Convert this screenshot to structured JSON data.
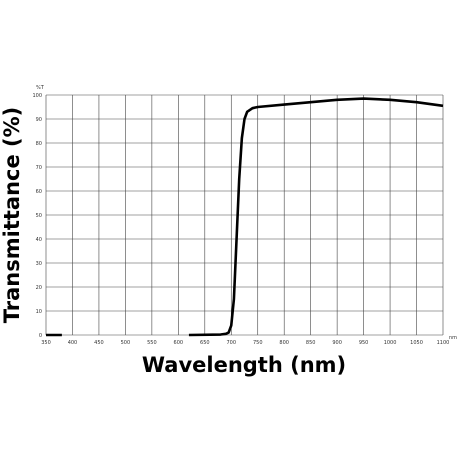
{
  "chart_data": {
    "type": "line",
    "xlabel": "Wavelength (nm)",
    "ylabel": "Transmittance (%)",
    "y_unit": "%T",
    "x_unit": "nm",
    "x": [
      350,
      380,
      500,
      620,
      680,
      690,
      695,
      700,
      705,
      710,
      715,
      720,
      725,
      730,
      740,
      750,
      800,
      850,
      900,
      950,
      1000,
      1050,
      1100
    ],
    "series": [
      {
        "name": "Transmittance",
        "color": "#000000",
        "values": [
          0,
          0,
          null,
          0,
          0.2,
          0.5,
          1,
          4,
          15,
          40,
          65,
          82,
          90,
          93,
          94.5,
          95,
          96,
          97,
          98,
          98.5,
          98,
          97,
          95.5
        ]
      }
    ],
    "xlim": [
      350,
      1100
    ],
    "ylim": [
      0,
      100
    ],
    "xticks": [
      350,
      400,
      450,
      500,
      550,
      600,
      650,
      700,
      750,
      800,
      850,
      900,
      950,
      1000,
      1050,
      1100
    ],
    "yticks": [
      0,
      10,
      20,
      30,
      40,
      50,
      60,
      70,
      80,
      90,
      100
    ],
    "grid": true
  }
}
